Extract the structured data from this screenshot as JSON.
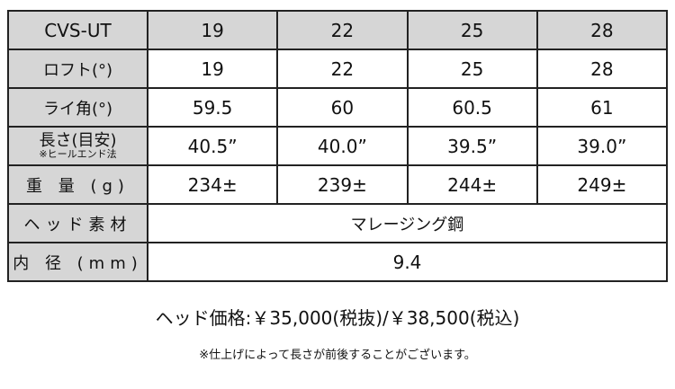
{
  "table": {
    "header": [
      "CVS-UT",
      "19",
      "22",
      "25",
      "28"
    ],
    "rows": [
      {
        "label": "ロフト(°)",
        "values": [
          "19",
          "22",
          "25",
          "28"
        ]
      },
      {
        "label": "ライ角(°)",
        "values": [
          "59.5",
          "60",
          "60.5",
          "61"
        ]
      },
      {
        "label": "長さ(目安)",
        "sublabel": "※ヒールエンド法",
        "values": [
          "40.5”",
          "40.0”",
          "39.5”",
          "39.0”"
        ]
      },
      {
        "label": "重 量 (g)",
        "values": [
          "234±",
          "239±",
          "244±",
          "249±"
        ]
      },
      {
        "label": "ヘッド素材",
        "value": "マレージング鋼"
      },
      {
        "label": "内 径 (mm)",
        "value": "9.4"
      }
    ]
  },
  "price": "ヘッド価格:￥35,000(税抜)/￥38,500(税込)",
  "note": "※仕上げによって長さが前後することがございます。",
  "colors": {
    "header_bg": "#d6d6d6",
    "border": "#222222"
  }
}
